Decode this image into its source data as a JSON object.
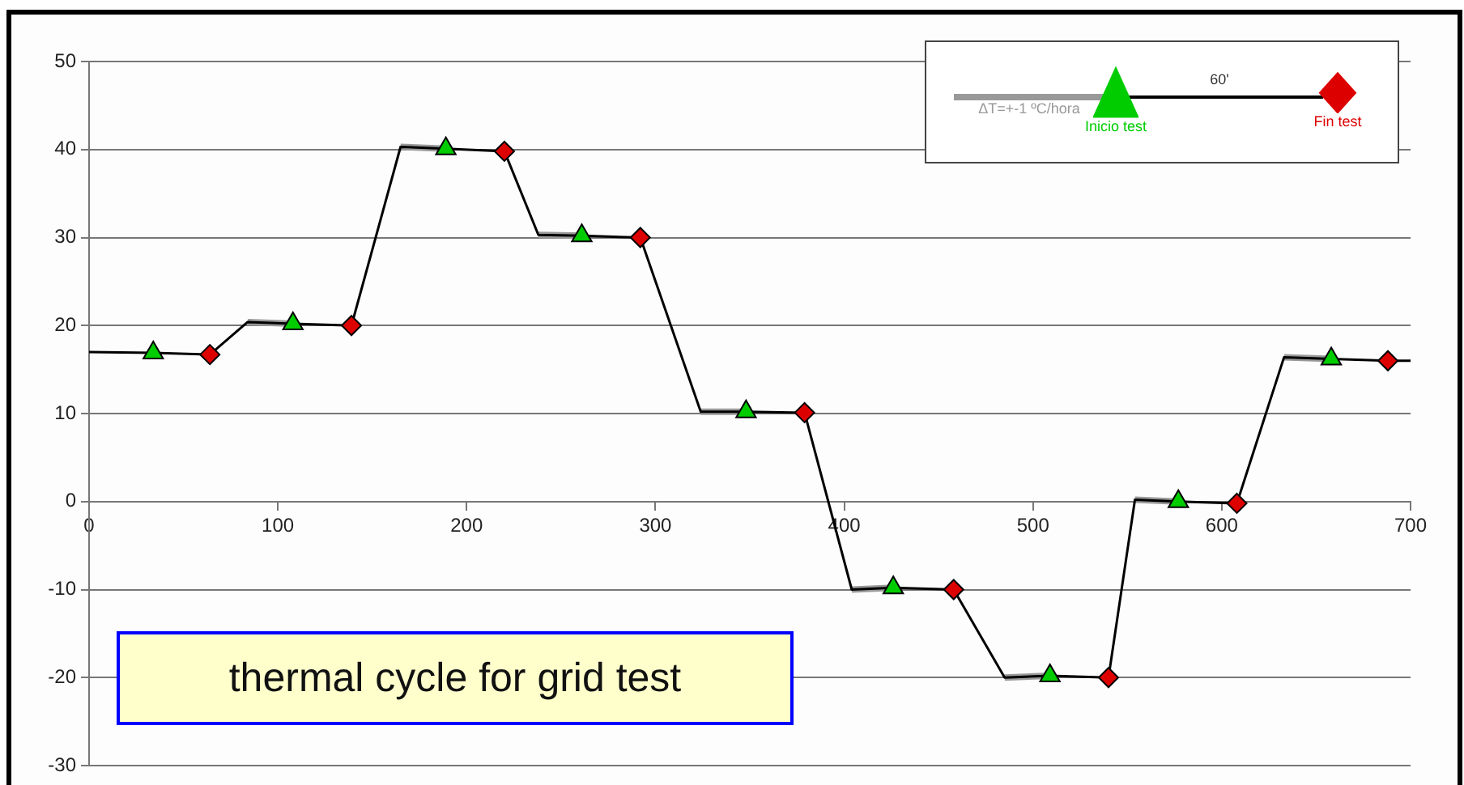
{
  "chart_data": {
    "type": "line",
    "title": "thermal cycle for grid test",
    "xlim": [
      0,
      700
    ],
    "xticks": [
      0,
      100,
      200,
      300,
      400,
      500,
      600,
      700
    ],
    "ylim": [
      -30,
      50
    ],
    "yticks": [
      -30,
      -20,
      -10,
      0,
      10,
      20,
      30,
      40,
      50
    ],
    "grid": "y",
    "legend": "top right",
    "annotations": [
      "60'"
    ],
    "series": [
      {
        "type": "line",
        "color": "#000000",
        "marker": "none",
        "x": [
          0,
          34,
          64,
          84,
          108,
          139,
          165,
          189,
          220,
          238,
          261,
          292,
          324,
          348,
          379,
          404,
          426,
          458,
          485,
          509,
          540,
          554,
          577,
          608,
          633,
          658,
          688,
          700
        ],
        "values": [
          17,
          16.9,
          16.7,
          20.4,
          20.2,
          20,
          40.3,
          40.1,
          39.8,
          30.3,
          30.2,
          30,
          10.2,
          10.2,
          10.1,
          -10,
          -9.8,
          -10,
          -20,
          -19.8,
          -20,
          0.2,
          0,
          -0.2,
          16.4,
          16.2,
          16,
          16
        ]
      },
      {
        "type": "line",
        "name": "ΔT=+-1 ºC/hora",
        "color": "#999999",
        "marker": "none",
        "x": [
          84,
          108,
          130,
          165,
          189,
          210,
          238,
          261,
          280,
          324,
          348,
          360,
          404,
          426,
          440,
          485,
          509,
          520,
          554,
          577,
          590,
          633,
          658
        ],
        "values": [
          20.4,
          20.2,
          null,
          40.3,
          40.1,
          null,
          30.3,
          30.2,
          null,
          10.2,
          10.2,
          null,
          -10,
          -9.8,
          null,
          -20,
          -19.8,
          null,
          0.2,
          0,
          null,
          16.4,
          16.2
        ]
      },
      {
        "type": "scatter",
        "name": "Inicio test",
        "color": "#00cc00",
        "marker": "triangle",
        "x": [
          34,
          108,
          189,
          261,
          348,
          426,
          509,
          577,
          658
        ],
        "values": [
          16.9,
          20.2,
          40.1,
          30.2,
          10.2,
          -9.8,
          -19.8,
          0,
          16.2
        ]
      },
      {
        "type": "scatter",
        "name": "Fin test",
        "color": "#dd0000",
        "marker": "diamond",
        "x": [
          64,
          139,
          220,
          292,
          379,
          458,
          540,
          608,
          688
        ],
        "values": [
          16.7,
          20,
          39.8,
          30,
          10.1,
          -10,
          -20,
          -0.2,
          16
        ]
      }
    ]
  }
}
